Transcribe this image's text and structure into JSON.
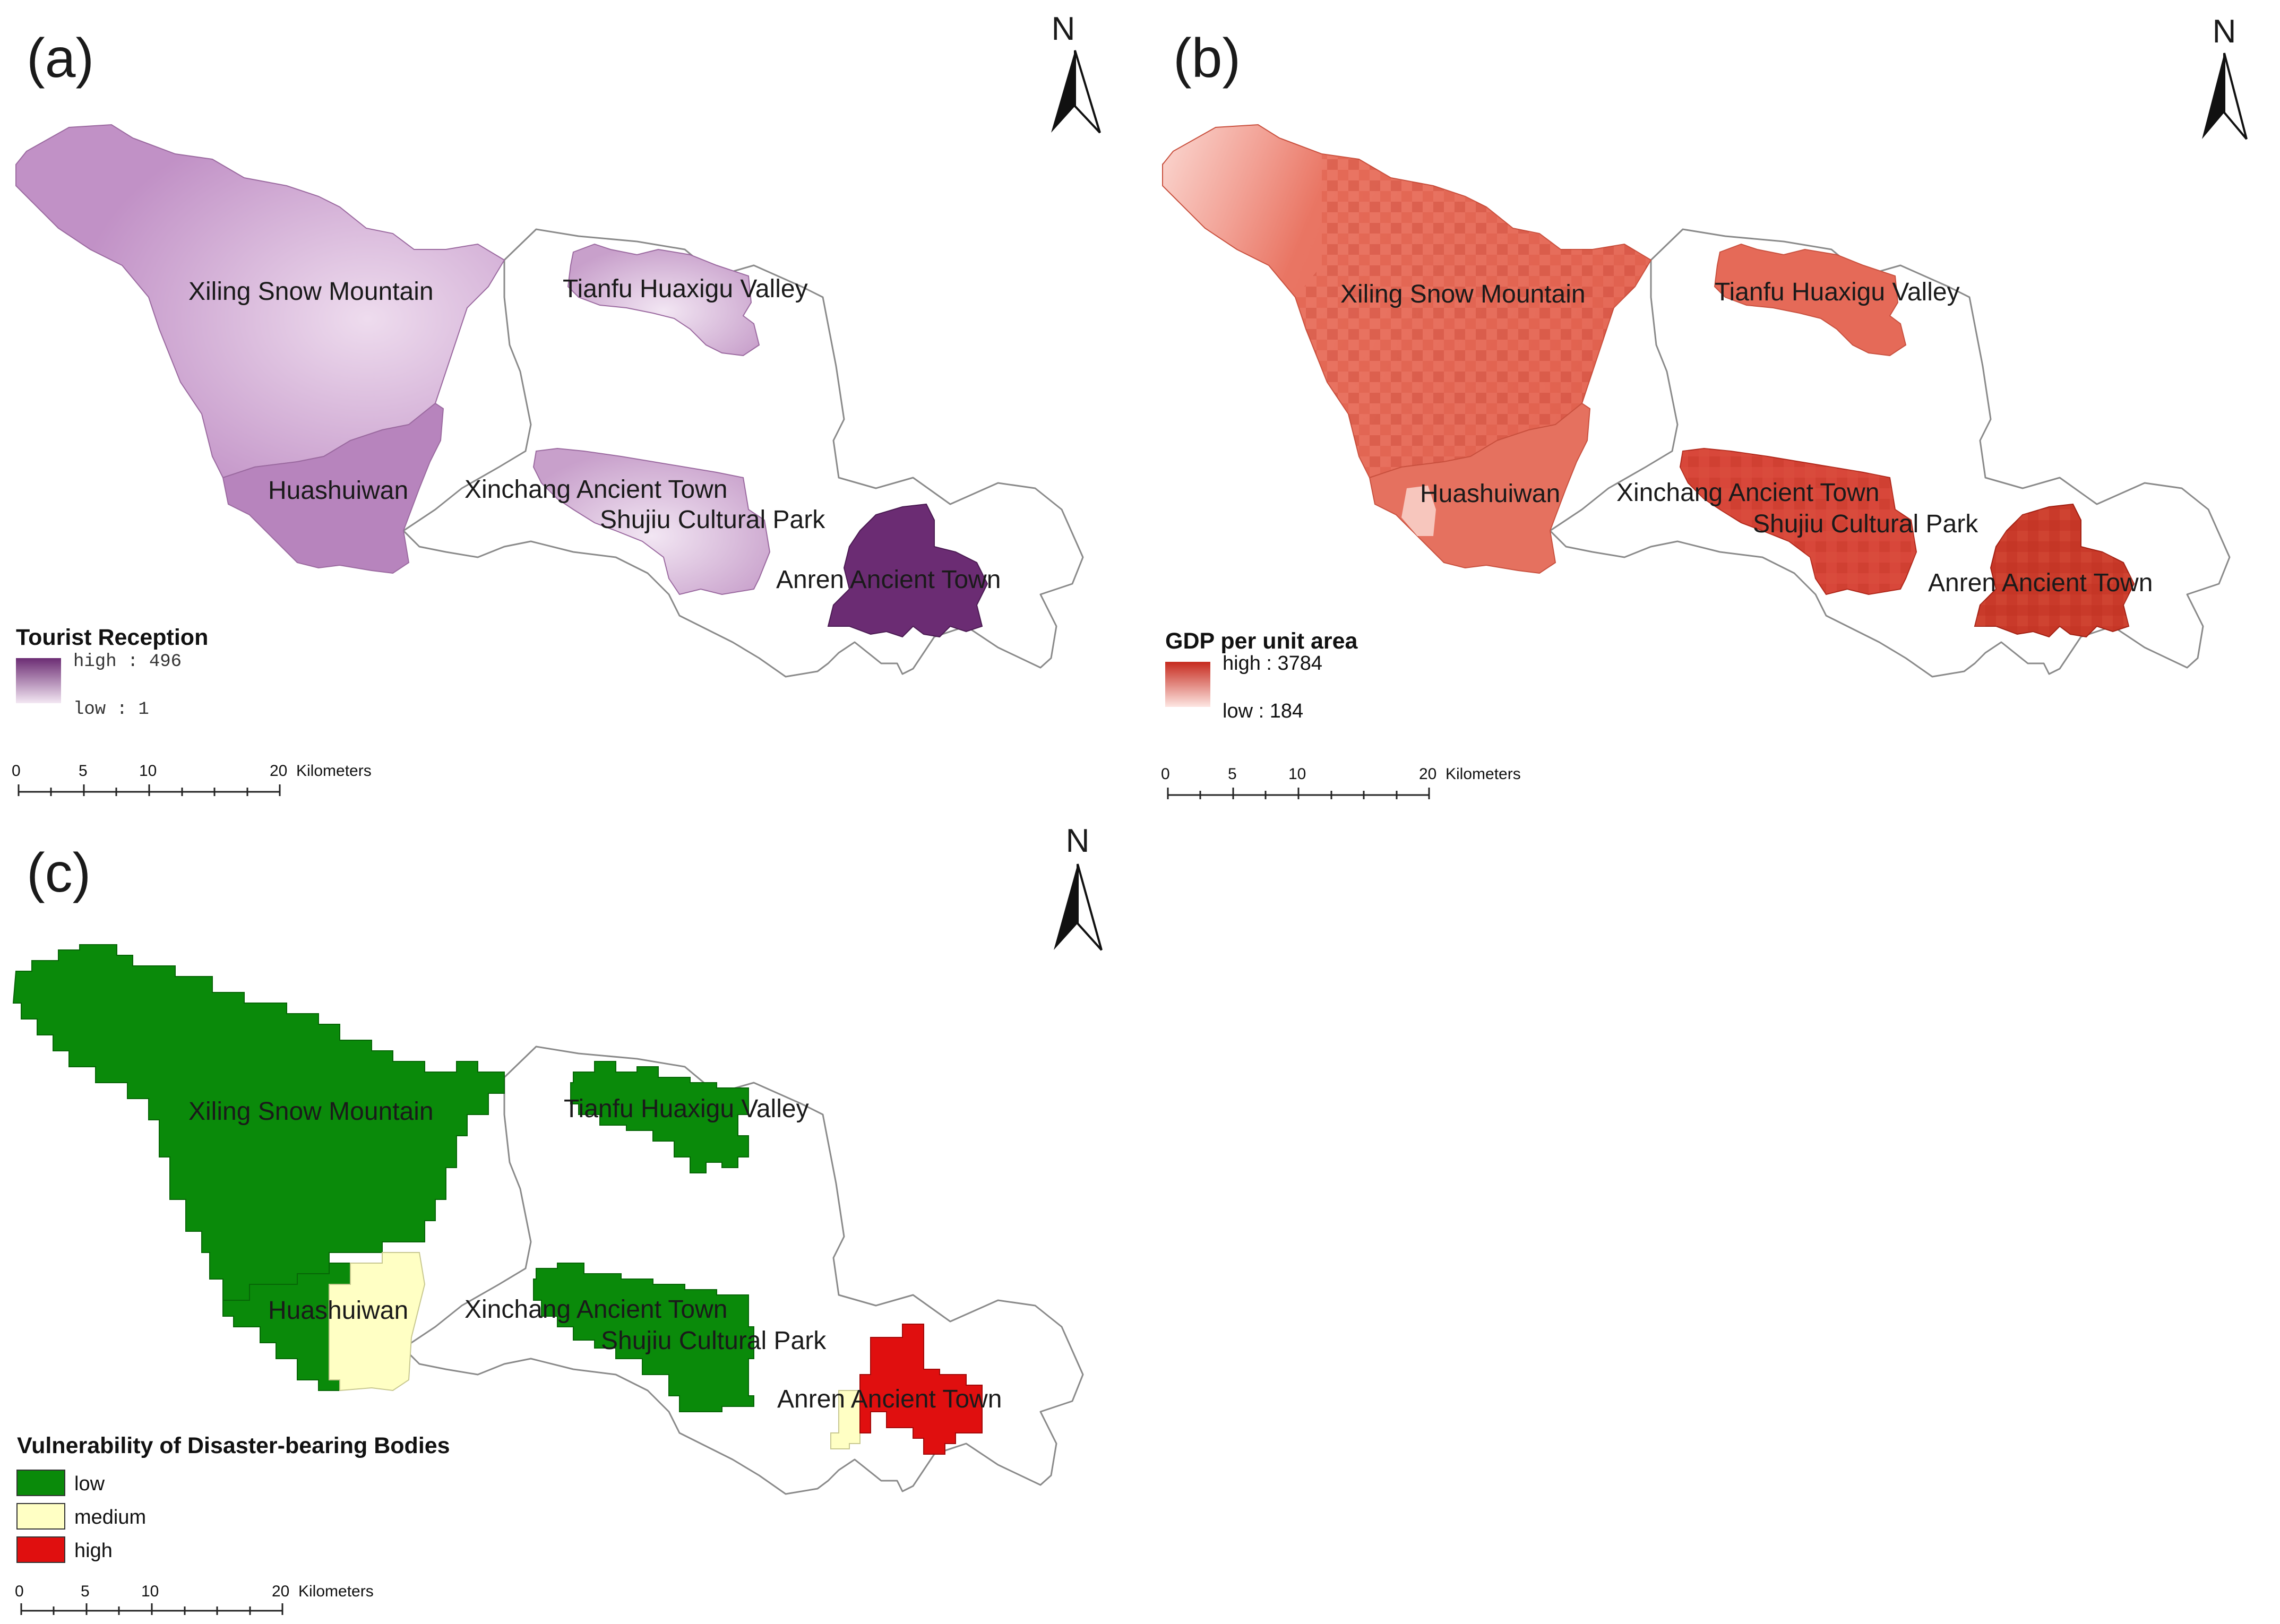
{
  "panels": {
    "a": {
      "letter": "(a)",
      "north": "N",
      "legend": {
        "title": "Tourist Reception",
        "high": "high : 496",
        "low": "low : 1",
        "ramp": [
          "#6b2c73",
          "#f3e7f3"
        ]
      }
    },
    "b": {
      "letter": "(b)",
      "north": "N",
      "legend": {
        "title": "GDP per unit area",
        "high": "high : 3784",
        "low": "low : 184",
        "ramp": [
          "#c62a1e",
          "#fde6e2"
        ]
      }
    },
    "c": {
      "letter": "(c)",
      "north": "N",
      "legend": {
        "title": "Vulnerability of Disaster-bearing Bodies",
        "classes": [
          {
            "label": "low",
            "color": "#0a8a0a"
          },
          {
            "label": "medium",
            "color": "#ffffc4"
          },
          {
            "label": "high",
            "color": "#e00f0f"
          }
        ]
      }
    }
  },
  "areas": {
    "xiling": "Xiling Snow Mountain",
    "tianfu": "Tianfu Huaxigu Valley",
    "huashuiwan": "Huashuiwan",
    "xinchang": "Xinchang Ancient Town",
    "shujiu": "Shujiu Cultural Park",
    "anren": "Anren Ancient Town"
  },
  "scale_bar": {
    "ticks": [
      "0",
      "5",
      "10",
      "20"
    ],
    "unit": "Kilometers"
  },
  "colors": {
    "a_fill": "#c49ac8",
    "a_light": "#e2c9e4",
    "a_anren": "#6b2c73",
    "b_fill": "#e97563",
    "b_light": "#fbd9d3",
    "b_dark": "#c93a2a",
    "c_low": "#0a8a0a",
    "c_medium": "#ffffc4",
    "c_high": "#e00f0f"
  }
}
